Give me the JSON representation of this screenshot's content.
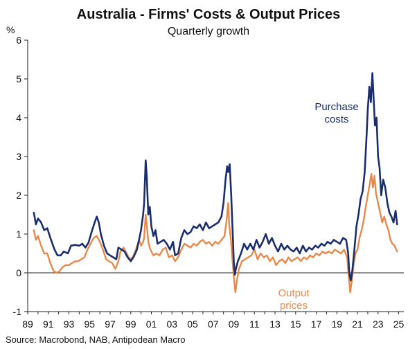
{
  "chart_data": {
    "type": "line",
    "title": "Australia - Firms' Costs & Output Prices",
    "subtitle": "Quarterly growth",
    "ylabel": "%",
    "xlabel": "",
    "ylim": [
      -1,
      6
    ],
    "xlim": [
      1989,
      2025.5
    ],
    "yticks": [
      "-1",
      "0",
      "1",
      "2",
      "3",
      "4",
      "5",
      "6"
    ],
    "xticks": [
      "89",
      "91",
      "93",
      "95",
      "97",
      "99",
      "01",
      "03",
      "05",
      "07",
      "09",
      "11",
      "13",
      "15",
      "17",
      "19",
      "21",
      "23",
      "25"
    ],
    "grid": false,
    "colors": {
      "purchase": "#1a2e6e",
      "output": "#e8894a"
    },
    "annotations": [
      {
        "series": "purchase",
        "lines": [
          "Purchase",
          "costs"
        ]
      },
      {
        "series": "output",
        "lines": [
          "Output",
          "prices"
        ]
      }
    ],
    "source": "Source: Macrobond, NAB, Antipodean Macro",
    "series": [
      {
        "key": "purchase",
        "points": [
          [
            1989.6,
            1.55
          ],
          [
            1989.8,
            1.25
          ],
          [
            1990.0,
            1.4
          ],
          [
            1990.3,
            1.3
          ],
          [
            1990.6,
            1.1
          ],
          [
            1990.9,
            1.15
          ],
          [
            1991.2,
            0.9
          ],
          [
            1991.6,
            0.6
          ],
          [
            1991.9,
            0.45
          ],
          [
            1992.2,
            0.45
          ],
          [
            1992.5,
            0.55
          ],
          [
            1992.9,
            0.5
          ],
          [
            1993.2,
            0.7
          ],
          [
            1993.6,
            0.72
          ],
          [
            1994.0,
            0.7
          ],
          [
            1994.3,
            0.75
          ],
          [
            1994.6,
            0.65
          ],
          [
            1994.9,
            0.78
          ],
          [
            1995.2,
            1.05
          ],
          [
            1995.5,
            1.3
          ],
          [
            1995.7,
            1.45
          ],
          [
            1995.9,
            1.3
          ],
          [
            1996.1,
            1.0
          ],
          [
            1996.4,
            0.7
          ],
          [
            1996.7,
            0.5
          ],
          [
            1997.0,
            0.45
          ],
          [
            1997.3,
            0.4
          ],
          [
            1997.6,
            0.35
          ],
          [
            1997.8,
            0.65
          ],
          [
            1998.1,
            0.6
          ],
          [
            1998.4,
            0.55
          ],
          [
            1998.7,
            0.4
          ],
          [
            1999.0,
            0.3
          ],
          [
            1999.3,
            0.42
          ],
          [
            1999.6,
            0.6
          ],
          [
            1999.8,
            0.85
          ],
          [
            2000.0,
            1.1
          ],
          [
            2000.2,
            1.5
          ],
          [
            2000.3,
            1.8
          ],
          [
            2000.45,
            2.9
          ],
          [
            2000.55,
            2.5
          ],
          [
            2000.7,
            1.5
          ],
          [
            2000.85,
            1.7
          ],
          [
            2001.0,
            1.2
          ],
          [
            2001.2,
            0.95
          ],
          [
            2001.4,
            1.1
          ],
          [
            2001.6,
            0.75
          ],
          [
            2001.9,
            0.8
          ],
          [
            2002.2,
            0.85
          ],
          [
            2002.5,
            0.75
          ],
          [
            2002.8,
            0.6
          ],
          [
            2003.1,
            0.8
          ],
          [
            2003.3,
            0.45
          ],
          [
            2003.6,
            0.5
          ],
          [
            2003.9,
            0.9
          ],
          [
            2004.2,
            1.1
          ],
          [
            2004.5,
            1.0
          ],
          [
            2004.8,
            1.05
          ],
          [
            2005.1,
            1.2
          ],
          [
            2005.4,
            1.15
          ],
          [
            2005.7,
            1.25
          ],
          [
            2006.0,
            1.1
          ],
          [
            2006.3,
            1.3
          ],
          [
            2006.6,
            1.15
          ],
          [
            2006.9,
            1.2
          ],
          [
            2007.2,
            1.25
          ],
          [
            2007.5,
            1.3
          ],
          [
            2007.8,
            1.45
          ],
          [
            2008.0,
            1.8
          ],
          [
            2008.2,
            2.4
          ],
          [
            2008.35,
            2.75
          ],
          [
            2008.45,
            2.6
          ],
          [
            2008.6,
            2.8
          ],
          [
            2008.75,
            2.0
          ],
          [
            2008.9,
            1.0
          ],
          [
            2009.0,
            0.3
          ],
          [
            2009.1,
            -0.05
          ],
          [
            2009.2,
            0.1
          ],
          [
            2009.4,
            0.3
          ],
          [
            2009.7,
            0.5
          ],
          [
            2010.0,
            0.75
          ],
          [
            2010.3,
            0.6
          ],
          [
            2010.6,
            0.75
          ],
          [
            2010.9,
            0.6
          ],
          [
            2011.2,
            0.85
          ],
          [
            2011.5,
            0.65
          ],
          [
            2011.8,
            0.8
          ],
          [
            2012.1,
            1.0
          ],
          [
            2012.4,
            0.75
          ],
          [
            2012.7,
            0.9
          ],
          [
            2013.0,
            0.7
          ],
          [
            2013.3,
            0.55
          ],
          [
            2013.6,
            0.75
          ],
          [
            2013.9,
            0.6
          ],
          [
            2014.2,
            0.7
          ],
          [
            2014.5,
            0.6
          ],
          [
            2014.8,
            0.55
          ],
          [
            2015.1,
            0.65
          ],
          [
            2015.4,
            0.5
          ],
          [
            2015.7,
            0.7
          ],
          [
            2016.0,
            0.55
          ],
          [
            2016.3,
            0.65
          ],
          [
            2016.6,
            0.6
          ],
          [
            2016.9,
            0.7
          ],
          [
            2017.2,
            0.65
          ],
          [
            2017.5,
            0.75
          ],
          [
            2017.8,
            0.7
          ],
          [
            2018.1,
            0.8
          ],
          [
            2018.4,
            0.75
          ],
          [
            2018.7,
            0.85
          ],
          [
            2019.0,
            0.8
          ],
          [
            2019.3,
            0.75
          ],
          [
            2019.6,
            0.9
          ],
          [
            2019.9,
            0.85
          ],
          [
            2020.1,
            0.5
          ],
          [
            2020.2,
            0.0
          ],
          [
            2020.35,
            -0.2
          ],
          [
            2020.5,
            0.05
          ],
          [
            2020.7,
            0.6
          ],
          [
            2020.9,
            1.2
          ],
          [
            2021.1,
            1.5
          ],
          [
            2021.3,
            1.9
          ],
          [
            2021.5,
            2.1
          ],
          [
            2021.7,
            2.6
          ],
          [
            2021.9,
            3.6
          ],
          [
            2022.0,
            4.2
          ],
          [
            2022.15,
            4.8
          ],
          [
            2022.3,
            4.4
          ],
          [
            2022.45,
            5.15
          ],
          [
            2022.55,
            4.6
          ],
          [
            2022.7,
            3.8
          ],
          [
            2022.85,
            4.0
          ],
          [
            2023.0,
            3.0
          ],
          [
            2023.15,
            2.7
          ],
          [
            2023.3,
            2.0
          ],
          [
            2023.5,
            2.4
          ],
          [
            2023.7,
            2.2
          ],
          [
            2023.9,
            1.8
          ],
          [
            2024.1,
            1.55
          ],
          [
            2024.3,
            1.45
          ],
          [
            2024.5,
            1.3
          ],
          [
            2024.7,
            1.6
          ],
          [
            2024.85,
            1.25
          ]
        ]
      },
      {
        "key": "output",
        "points": [
          [
            1989.6,
            1.1
          ],
          [
            1989.8,
            0.85
          ],
          [
            1990.0,
            0.95
          ],
          [
            1990.3,
            0.7
          ],
          [
            1990.6,
            0.5
          ],
          [
            1990.9,
            0.5
          ],
          [
            1991.2,
            0.25
          ],
          [
            1991.5,
            0.05
          ],
          [
            1991.8,
            0.0
          ],
          [
            1992.1,
            0.05
          ],
          [
            1992.4,
            0.15
          ],
          [
            1992.7,
            0.2
          ],
          [
            1993.0,
            0.2
          ],
          [
            1993.3,
            0.25
          ],
          [
            1993.6,
            0.3
          ],
          [
            1993.9,
            0.3
          ],
          [
            1994.2,
            0.35
          ],
          [
            1994.5,
            0.4
          ],
          [
            1994.8,
            0.6
          ],
          [
            1995.1,
            0.75
          ],
          [
            1995.4,
            0.9
          ],
          [
            1995.7,
            0.95
          ],
          [
            1996.0,
            0.8
          ],
          [
            1996.3,
            0.6
          ],
          [
            1996.6,
            0.35
          ],
          [
            1996.9,
            0.3
          ],
          [
            1997.2,
            0.25
          ],
          [
            1997.5,
            0.1
          ],
          [
            1997.8,
            0.3
          ],
          [
            1998.0,
            0.55
          ],
          [
            1998.3,
            0.65
          ],
          [
            1998.6,
            0.5
          ],
          [
            1998.9,
            0.35
          ],
          [
            1999.2,
            0.4
          ],
          [
            1999.5,
            0.6
          ],
          [
            1999.8,
            0.85
          ],
          [
            2000.0,
            0.7
          ],
          [
            2000.2,
            0.8
          ],
          [
            2000.3,
            0.9
          ],
          [
            2000.45,
            1.5
          ],
          [
            2000.55,
            1.25
          ],
          [
            2000.7,
            0.8
          ],
          [
            2000.9,
            0.6
          ],
          [
            2001.2,
            0.45
          ],
          [
            2001.5,
            0.5
          ],
          [
            2001.8,
            0.45
          ],
          [
            2002.1,
            0.6
          ],
          [
            2002.4,
            0.65
          ],
          [
            2002.7,
            0.4
          ],
          [
            2003.0,
            0.45
          ],
          [
            2003.3,
            0.3
          ],
          [
            2003.6,
            0.4
          ],
          [
            2003.9,
            0.6
          ],
          [
            2004.2,
            0.75
          ],
          [
            2004.5,
            0.7
          ],
          [
            2004.8,
            0.65
          ],
          [
            2005.1,
            0.75
          ],
          [
            2005.4,
            0.7
          ],
          [
            2005.7,
            0.8
          ],
          [
            2006.0,
            0.85
          ],
          [
            2006.3,
            0.75
          ],
          [
            2006.6,
            0.8
          ],
          [
            2006.9,
            0.7
          ],
          [
            2007.2,
            0.8
          ],
          [
            2007.5,
            0.75
          ],
          [
            2007.8,
            0.85
          ],
          [
            2008.1,
            0.95
          ],
          [
            2008.3,
            1.35
          ],
          [
            2008.45,
            1.8
          ],
          [
            2008.55,
            1.25
          ],
          [
            2008.7,
            0.9
          ],
          [
            2008.85,
            0.4
          ],
          [
            2009.0,
            -0.1
          ],
          [
            2009.15,
            -0.5
          ],
          [
            2009.3,
            -0.2
          ],
          [
            2009.5,
            0.1
          ],
          [
            2009.8,
            0.3
          ],
          [
            2010.1,
            0.35
          ],
          [
            2010.4,
            0.4
          ],
          [
            2010.7,
            0.45
          ],
          [
            2011.0,
            0.6
          ],
          [
            2011.3,
            0.35
          ],
          [
            2011.6,
            0.5
          ],
          [
            2011.9,
            0.4
          ],
          [
            2012.2,
            0.45
          ],
          [
            2012.5,
            0.3
          ],
          [
            2012.8,
            0.4
          ],
          [
            2013.1,
            0.2
          ],
          [
            2013.4,
            0.3
          ],
          [
            2013.7,
            0.35
          ],
          [
            2014.0,
            0.25
          ],
          [
            2014.3,
            0.4
          ],
          [
            2014.6,
            0.3
          ],
          [
            2014.9,
            0.35
          ],
          [
            2015.2,
            0.4
          ],
          [
            2015.5,
            0.3
          ],
          [
            2015.8,
            0.4
          ],
          [
            2016.1,
            0.35
          ],
          [
            2016.4,
            0.45
          ],
          [
            2016.7,
            0.4
          ],
          [
            2017.0,
            0.5
          ],
          [
            2017.3,
            0.45
          ],
          [
            2017.6,
            0.55
          ],
          [
            2017.9,
            0.5
          ],
          [
            2018.2,
            0.55
          ],
          [
            2018.5,
            0.5
          ],
          [
            2018.8,
            0.6
          ],
          [
            2019.1,
            0.55
          ],
          [
            2019.4,
            0.5
          ],
          [
            2019.7,
            0.6
          ],
          [
            2020.0,
            0.4
          ],
          [
            2020.15,
            -0.1
          ],
          [
            2020.3,
            -0.5
          ],
          [
            2020.45,
            -0.2
          ],
          [
            2020.6,
            0.15
          ],
          [
            2020.8,
            0.5
          ],
          [
            2021.0,
            0.6
          ],
          [
            2021.2,
            0.9
          ],
          [
            2021.4,
            1.1
          ],
          [
            2021.6,
            1.35
          ],
          [
            2021.8,
            1.7
          ],
          [
            2022.0,
            2.0
          ],
          [
            2022.2,
            2.3
          ],
          [
            2022.35,
            2.55
          ],
          [
            2022.5,
            2.2
          ],
          [
            2022.65,
            2.5
          ],
          [
            2022.8,
            2.05
          ],
          [
            2023.0,
            1.8
          ],
          [
            2023.2,
            1.55
          ],
          [
            2023.4,
            1.3
          ],
          [
            2023.6,
            1.45
          ],
          [
            2023.8,
            1.25
          ],
          [
            2024.0,
            1.1
          ],
          [
            2024.2,
            0.85
          ],
          [
            2024.4,
            0.75
          ],
          [
            2024.6,
            0.7
          ],
          [
            2024.85,
            0.55
          ]
        ]
      }
    ]
  }
}
